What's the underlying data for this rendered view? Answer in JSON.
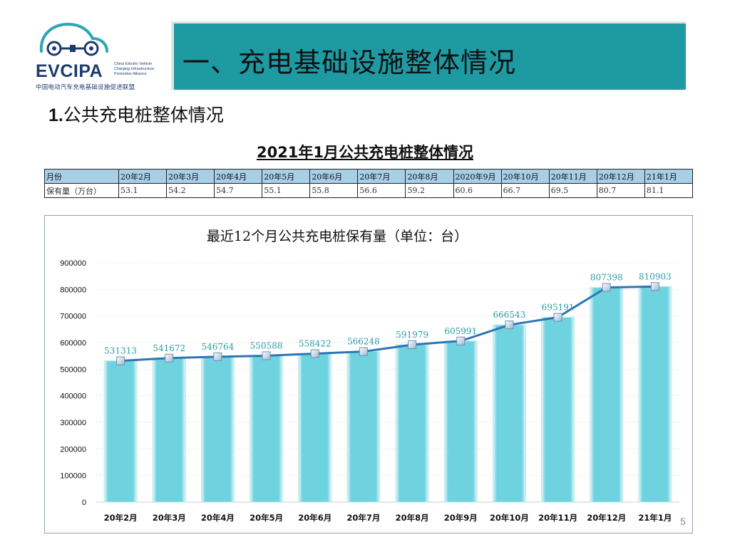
{
  "logo": {
    "brand": "EVCIPA",
    "english": "China Electric Vehicle Charging Infrastructure Promotion Alliance",
    "chinese": "中国电动汽车充电基础设施促进联盟"
  },
  "header": {
    "title": "一、充电基础设施整体情况",
    "color": "#1e9aa3"
  },
  "subheading": {
    "number": "1.",
    "text": "公共充电桩整体情况"
  },
  "table": {
    "title": "2021年1月公共充电桩整体情况",
    "header_label": "月份",
    "months": [
      "20年2月",
      "20年3月",
      "20年4月",
      "20年5月",
      "20年6月",
      "20年7月",
      "20年8月",
      "2020年9月",
      "20年10月",
      "20年11月",
      "20年12月",
      "21年1月"
    ],
    "value_label": "保有量（万台）",
    "values": [
      "53.1",
      "54.2",
      "54.7",
      "55.1",
      "55.8",
      "56.6",
      "59.2",
      "60.6",
      "66.7",
      "69.5",
      "80.7",
      "81.1"
    ]
  },
  "chart_data": {
    "type": "bar",
    "title": "最近12个月公共充电桩保有量（单位：台）",
    "categories": [
      "20年2月",
      "20年3月",
      "20年4月",
      "20年5月",
      "20年6月",
      "20年7月",
      "20年8月",
      "20年9月",
      "20年10月",
      "20年11月",
      "20年12月",
      "21年1月"
    ],
    "values": [
      531313,
      541672,
      546764,
      550588,
      558422,
      566248,
      591979,
      605991,
      666543,
      695191,
      807398,
      810903
    ],
    "value_labels": [
      "531313",
      "541672",
      "546764",
      "550588",
      "558422",
      "566248",
      "591979",
      "605991",
      "666543",
      "695191",
      "807398",
      "810903"
    ],
    "overlay": "line",
    "ylim": [
      0,
      900000
    ],
    "yticks": [
      0,
      100000,
      200000,
      300000,
      400000,
      500000,
      600000,
      700000,
      800000,
      900000
    ],
    "ytick_labels": [
      "0",
      "100000",
      "200000",
      "300000",
      "400000",
      "500000",
      "600000",
      "700000",
      "800000",
      "900000"
    ],
    "grid": true,
    "xlabel": "",
    "ylabel": "",
    "bar_color": "#6fd3df",
    "line_color": "#2e75b6",
    "label_color": "#2a9da6"
  },
  "page_number": "5"
}
